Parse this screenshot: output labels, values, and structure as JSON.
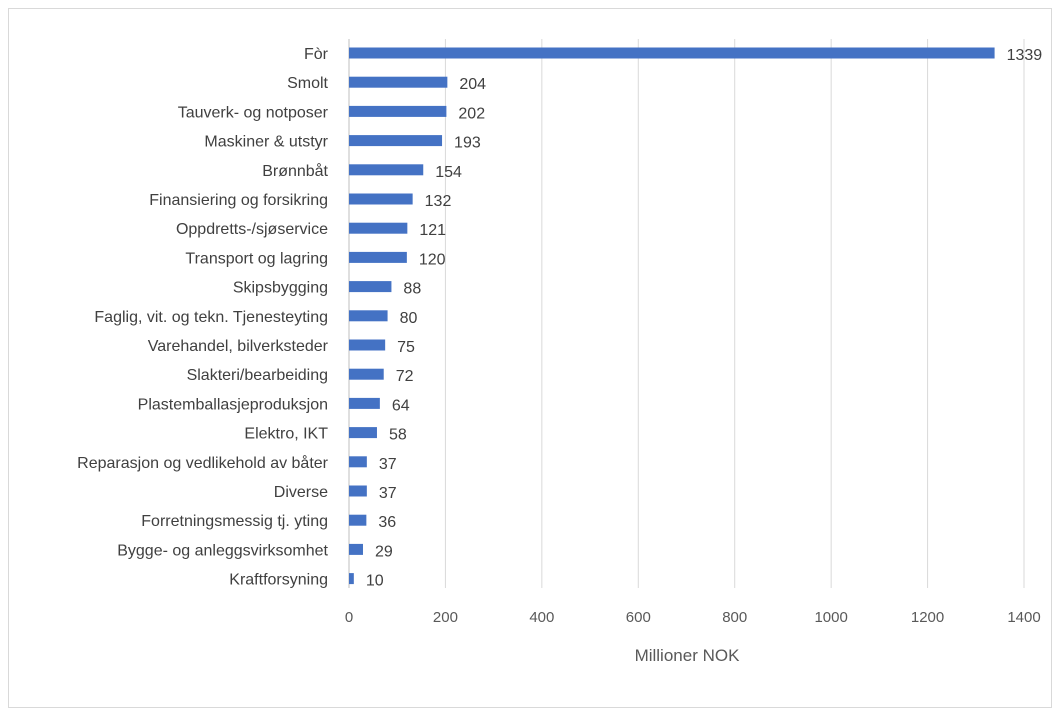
{
  "chart_data": {
    "type": "bar",
    "orientation": "horizontal",
    "categories": [
      "Fòr",
      "Smolt",
      "Tauverk- og notposer",
      "Maskiner & utstyr",
      "Brønnbåt",
      "Finansiering og forsikring",
      "Oppdretts-/sjøservice",
      "Transport og lagring",
      "Skipsbygging",
      "Faglig, vit. og tekn. Tjenesteyting",
      "Varehandel, bilverksteder",
      "Slakteri/bearbeiding",
      "Plastemballasjeproduksjon",
      "Elektro, IKT",
      "Reparasjon og vedlikehold av båter",
      "Diverse",
      "Forretningsmessig tj. yting",
      "Bygge- og anleggsvirksomhet",
      "Kraftforsyning"
    ],
    "values": [
      1339,
      204,
      202,
      193,
      154,
      132,
      121,
      120,
      88,
      80,
      75,
      72,
      64,
      58,
      37,
      37,
      36,
      29,
      10
    ],
    "value_labels": [
      "1339",
      "204",
      "202",
      "193",
      "154",
      "132",
      "121",
      "120",
      "88",
      "80",
      "75",
      "72",
      "64",
      "58",
      "37",
      "37",
      "36",
      "29",
      "10"
    ],
    "xlabel": "Millioner NOK",
    "ylabel": "",
    "xlim": [
      0,
      1400
    ],
    "xticks": [
      0,
      200,
      400,
      600,
      800,
      1000,
      1200,
      1400
    ],
    "xtick_labels": [
      "0",
      "200",
      "400",
      "600",
      "800",
      "1000",
      "1200",
      "1400"
    ],
    "grid": "vertical",
    "legend": "none",
    "bar_color": "#4472c4"
  }
}
